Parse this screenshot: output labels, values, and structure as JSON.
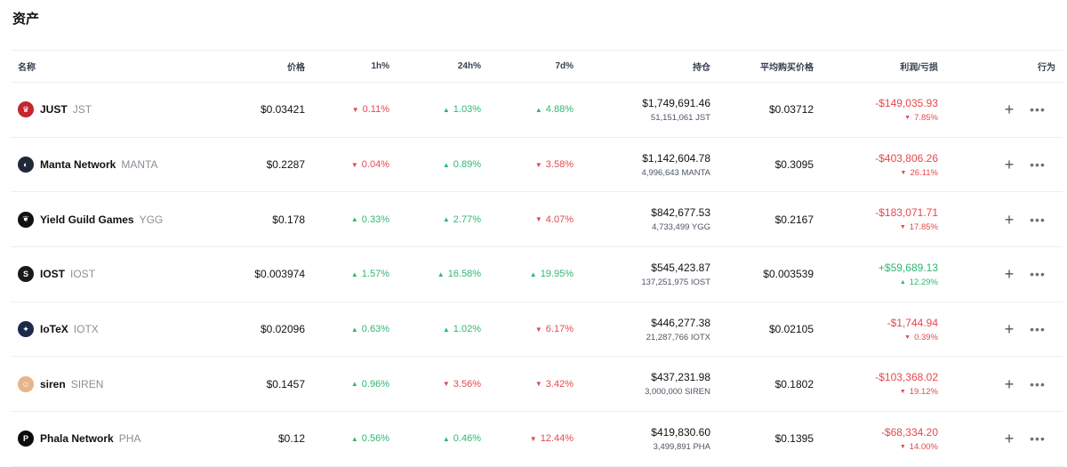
{
  "page": {
    "title": "资产"
  },
  "columns": {
    "name": "名称",
    "price": "价格",
    "h1": "1h%",
    "h24": "24h%",
    "d7": "7d%",
    "holdings": "持仓",
    "avg_buy": "平均购买价格",
    "pnl": "利润/亏损",
    "actions": "行为"
  },
  "assets": [
    {
      "name": "JUST",
      "symbol": "JST",
      "icon": "jst-icon",
      "icon_color": "#c3262e",
      "price": "$0.03421",
      "h1": "0.11%",
      "h1_dir": "down",
      "h24": "1.03%",
      "h24_dir": "up",
      "d7": "4.88%",
      "d7_dir": "up",
      "holding_value": "$1,749,691.46",
      "holding_qty": "51,151,061 JST",
      "avg_buy": "$0.03712",
      "pnl": "-$149,035.93",
      "pnl_pct": "7.85%",
      "pnl_dir": "down"
    },
    {
      "name": "Manta Network",
      "symbol": "MANTA",
      "icon": "manta-icon",
      "icon_color": "#1f2937",
      "price": "$0.2287",
      "h1": "0.04%",
      "h1_dir": "down",
      "h24": "0.89%",
      "h24_dir": "up",
      "d7": "3.58%",
      "d7_dir": "down",
      "holding_value": "$1,142,604.78",
      "holding_qty": "4,996,643 MANTA",
      "avg_buy": "$0.3095",
      "pnl": "-$403,806.26",
      "pnl_pct": "26.11%",
      "pnl_dir": "down"
    },
    {
      "name": "Yield Guild Games",
      "symbol": "YGG",
      "icon": "ygg-icon",
      "icon_color": "#111111",
      "price": "$0.178",
      "h1": "0.33%",
      "h1_dir": "up",
      "h24": "2.77%",
      "h24_dir": "up",
      "d7": "4.07%",
      "d7_dir": "down",
      "holding_value": "$842,677.53",
      "holding_qty": "4,733,499 YGG",
      "avg_buy": "$0.2167",
      "pnl": "-$183,071.71",
      "pnl_pct": "17.85%",
      "pnl_dir": "down"
    },
    {
      "name": "IOST",
      "symbol": "IOST",
      "icon": "iost-icon",
      "icon_color": "#1a1a1a",
      "price": "$0.003974",
      "h1": "1.57%",
      "h1_dir": "up",
      "h24": "16.58%",
      "h24_dir": "up",
      "d7": "19.95%",
      "d7_dir": "up",
      "holding_value": "$545,423.87",
      "holding_qty": "137,251,975 IOST",
      "avg_buy": "$0.003539",
      "pnl": "+$59,689.13",
      "pnl_pct": "12.29%",
      "pnl_dir": "up"
    },
    {
      "name": "IoTeX",
      "symbol": "IOTX",
      "icon": "iotex-icon",
      "icon_color": "#1e2a4a",
      "price": "$0.02096",
      "h1": "0.63%",
      "h1_dir": "up",
      "h24": "1.02%",
      "h24_dir": "up",
      "d7": "6.17%",
      "d7_dir": "down",
      "holding_value": "$446,277.38",
      "holding_qty": "21,287,766 IOTX",
      "avg_buy": "$0.02105",
      "pnl": "-$1,744.94",
      "pnl_pct": "0.39%",
      "pnl_dir": "down"
    },
    {
      "name": "siren",
      "symbol": "SIREN",
      "icon": "siren-icon",
      "icon_color": "#e8b48a",
      "price": "$0.1457",
      "h1": "0.96%",
      "h1_dir": "up",
      "h24": "3.56%",
      "h24_dir": "down",
      "d7": "3.42%",
      "d7_dir": "down",
      "holding_value": "$437,231.98",
      "holding_qty": "3,000,000 SIREN",
      "avg_buy": "$0.1802",
      "pnl": "-$103,368.02",
      "pnl_pct": "19.12%",
      "pnl_dir": "down"
    },
    {
      "name": "Phala Network",
      "symbol": "PHA",
      "icon": "pha-icon",
      "icon_color": "#0b0b0b",
      "price": "$0.12",
      "h1": "0.56%",
      "h1_dir": "up",
      "h24": "0.46%",
      "h24_dir": "up",
      "d7": "12.44%",
      "d7_dir": "down",
      "holding_value": "$419,830.60",
      "holding_qty": "3,499,891 PHA",
      "avg_buy": "$0.1395",
      "pnl": "-$68,334.20",
      "pnl_pct": "14.00%",
      "pnl_dir": "down"
    }
  ],
  "colors": {
    "up": "#2eb871",
    "down": "#e5484d",
    "border": "#eceef1"
  },
  "icons": {
    "add": "plus-icon",
    "more": "more-icon",
    "up": "triangle-up-icon",
    "down": "triangle-down-icon"
  }
}
